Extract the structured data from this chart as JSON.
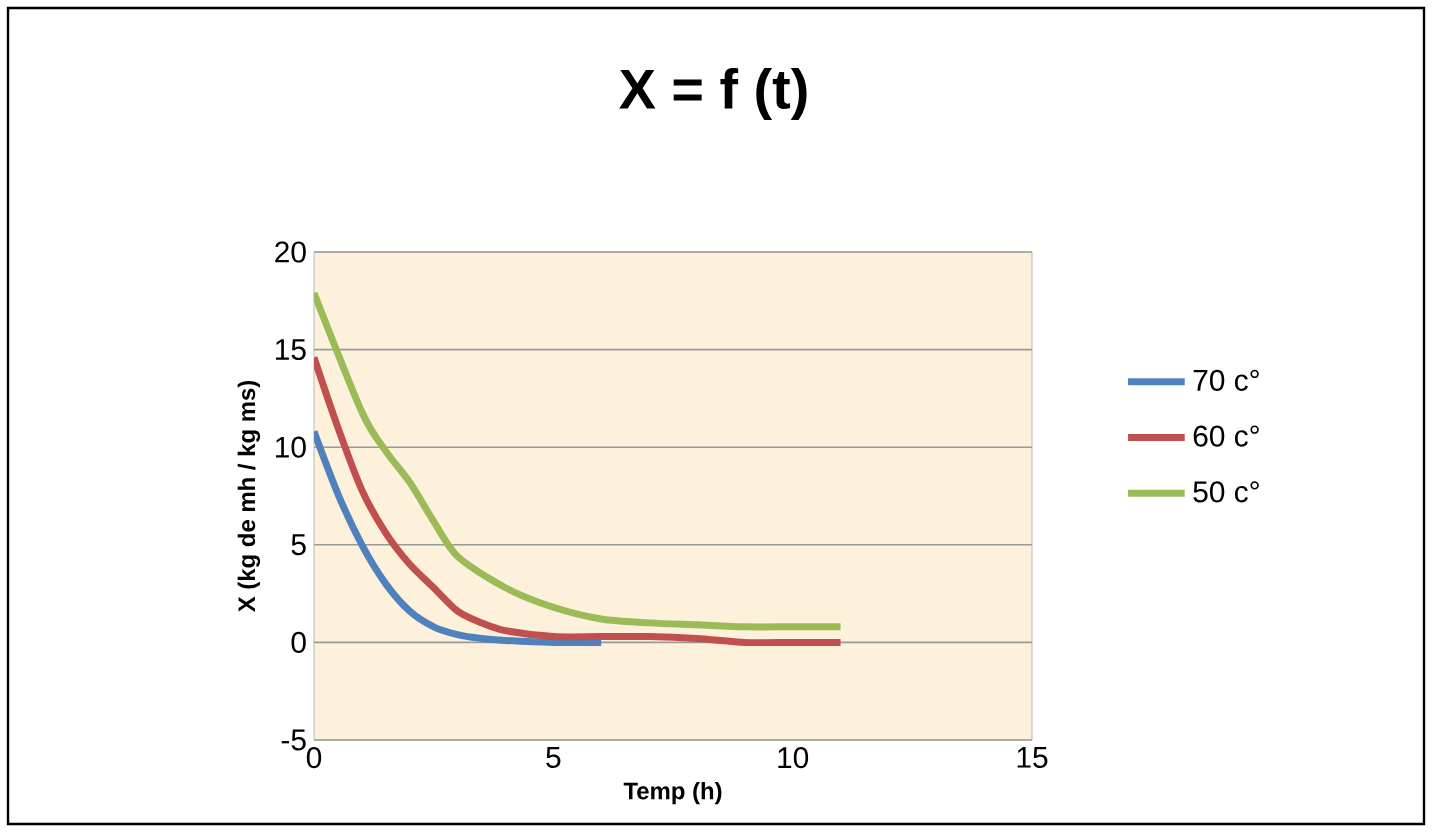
{
  "chart_data": {
    "type": "line",
    "title": "X = f (t)",
    "xlabel": "Temp (h)",
    "ylabel": "X (kg de mh / kg ms)",
    "xlim": [
      0,
      15
    ],
    "xticks": [
      0,
      5,
      10,
      15
    ],
    "ylim": [
      -5,
      20
    ],
    "yticks": [
      -5,
      0,
      5,
      10,
      15,
      20
    ],
    "grid": "y",
    "legend": "right",
    "marker": "none",
    "line_style": "solid",
    "series": [
      {
        "name": "70 c°",
        "color": "#4f81bd",
        "x": [
          0,
          0.5,
          1,
          1.5,
          2,
          2.5,
          3,
          3.5,
          4,
          5,
          6
        ],
        "values": [
          10.8,
          7.6,
          5.0,
          3.0,
          1.6,
          0.8,
          0.4,
          0.2,
          0.1,
          0,
          0
        ]
      },
      {
        "name": "60 c°",
        "color": "#c0504d",
        "x": [
          0,
          0.5,
          1,
          1.5,
          2,
          2.5,
          3,
          3.5,
          4,
          5,
          6,
          7,
          8,
          9,
          10,
          11
        ],
        "values": [
          14.6,
          11,
          7.8,
          5.6,
          4.0,
          2.8,
          1.6,
          1.0,
          0.6,
          0.3,
          0.3,
          0.3,
          0.2,
          0,
          0,
          0
        ]
      },
      {
        "name": "50 c°",
        "color": "#9bbb59",
        "x": [
          0,
          1,
          1.5,
          2,
          2.5,
          3,
          4,
          5,
          6,
          7,
          8,
          9,
          10,
          11
        ],
        "values": [
          17.9,
          11.8,
          9.8,
          8.2,
          6.2,
          4.4,
          2.8,
          1.8,
          1.2,
          1.0,
          0.9,
          0.8,
          0.8,
          0.8
        ]
      }
    ]
  }
}
